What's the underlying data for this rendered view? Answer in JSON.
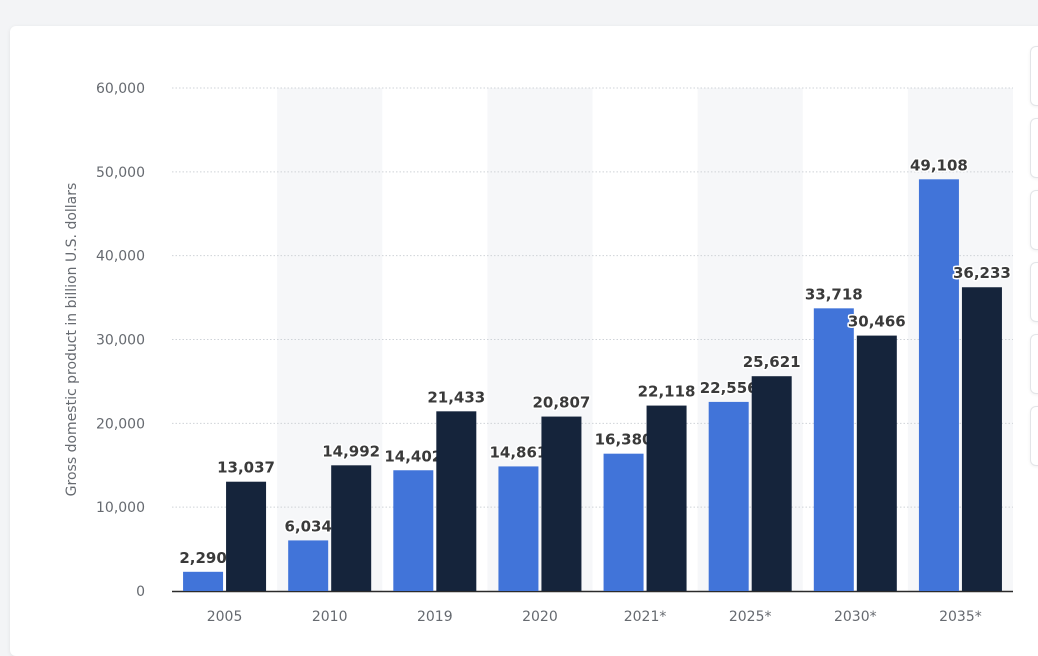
{
  "chart_data": {
    "type": "bar",
    "categories": [
      "2005",
      "2010",
      "2019",
      "2020",
      "2021*",
      "2025*",
      "2030*",
      "2035*"
    ],
    "series": [
      {
        "values": [
          2290,
          6034,
          14402,
          14861,
          16380,
          22556,
          33718,
          49108
        ],
        "color": "#4174d9"
      },
      {
        "values": [
          13037,
          14992,
          21433,
          20807,
          22118,
          25621,
          30466,
          36233
        ],
        "color": "#15243b"
      }
    ],
    "value_labels": [
      [
        "2,290",
        "6,034",
        "14,402",
        "14,861",
        "16,380",
        "22,556",
        "33,718",
        "49,108"
      ],
      [
        "13,037",
        "14,992",
        "21,433",
        "20,807",
        "22,118",
        "25,621",
        "30,466",
        "36,233"
      ]
    ],
    "yticks": [
      "0",
      "10,000",
      "20,000",
      "30,000",
      "40,000",
      "50,000",
      "60,000"
    ],
    "ylabel": "Gross domestic product in billion U.S. dollars",
    "xlabel": "",
    "ylim": [
      0,
      60000
    ],
    "grid": true,
    "alternate_band_color": "#f6f7f9"
  }
}
